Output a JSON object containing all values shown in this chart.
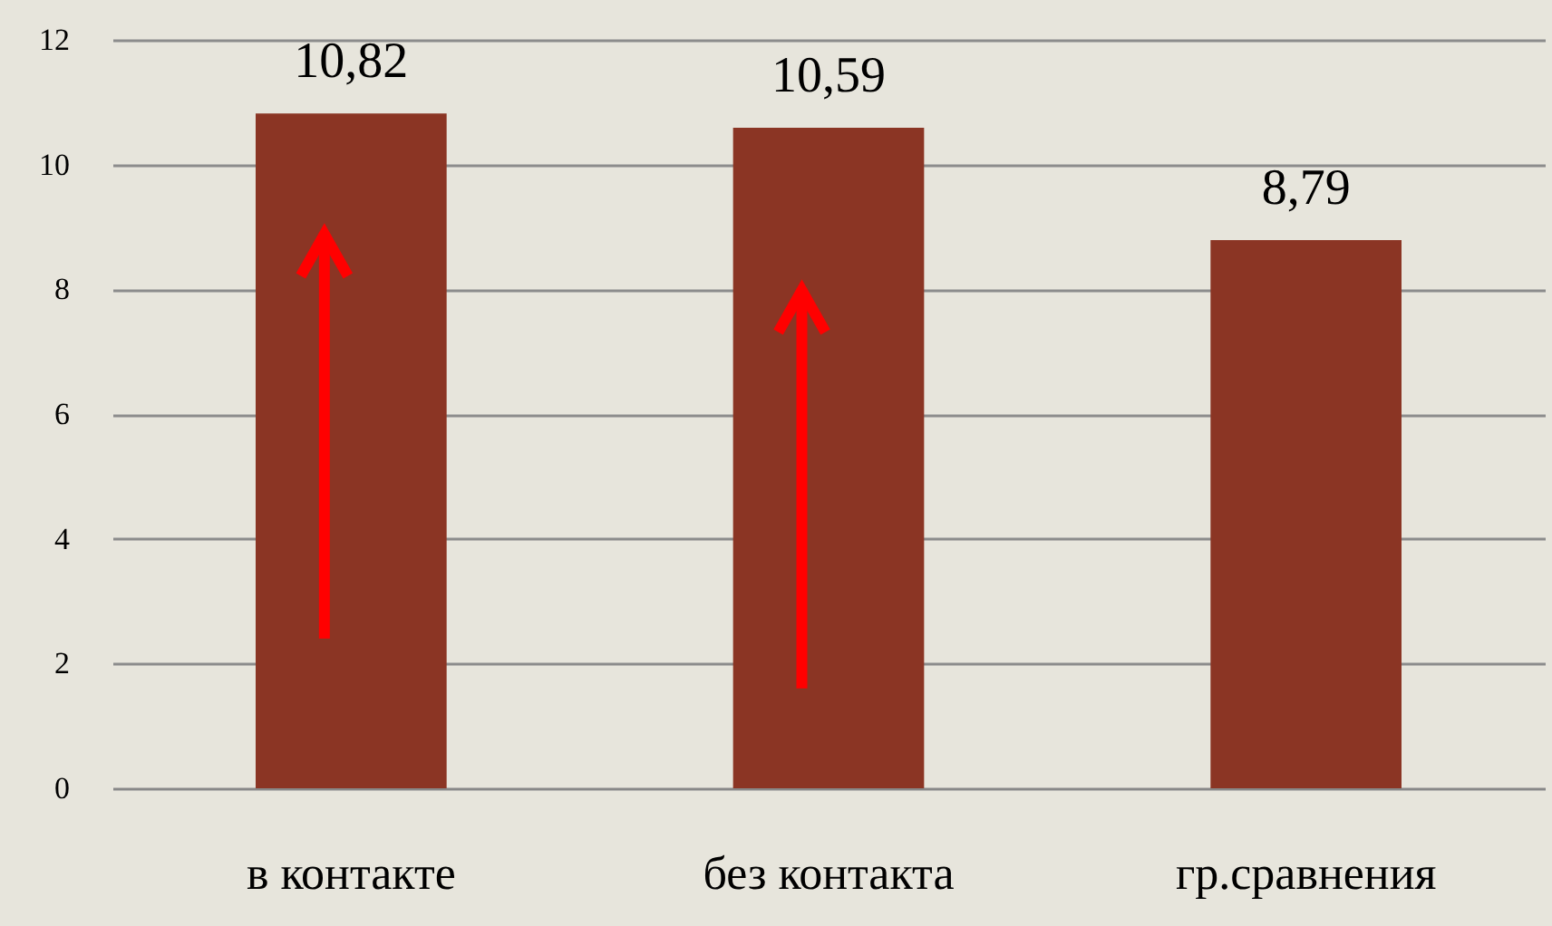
{
  "chart_data": {
    "type": "bar",
    "categories": [
      "в контакте",
      "без контакта",
      "гр.сравнения"
    ],
    "values": [
      10.82,
      10.59,
      8.79
    ],
    "value_labels": [
      "10,82",
      "10,59",
      "8,79"
    ],
    "color": "#8b3524",
    "ylim": [
      0,
      12
    ],
    "yticks": [
      0,
      2,
      4,
      6,
      8,
      10,
      12
    ],
    "grid": "y"
  }
}
